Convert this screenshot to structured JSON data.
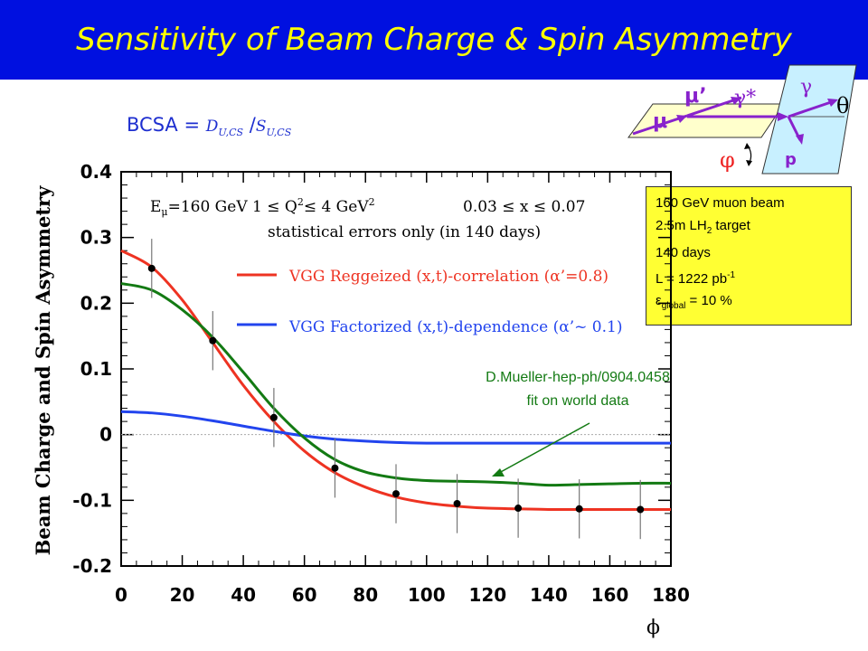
{
  "slide": {
    "title": "Sensitivity of Beam Charge & Spin Asymmetry",
    "banner_color": "#0010e0",
    "title_color": "#ffff00"
  },
  "formula": {
    "prefix": "BCSA = ",
    "d_main": "D",
    "d_sub": "U,CS",
    "sep": " /",
    "s_main": "S",
    "s_sub": "U,CS"
  },
  "kinematics": {
    "gamma": "γ",
    "gamma_star": "γ*",
    "mu_prime": "μ’",
    "mu": "μ",
    "theta": "θ",
    "phi": "φ",
    "proton": "p"
  },
  "info_box": {
    "line1": "160 GeV muon beam",
    "line2_pre": "2.5m LH",
    "line2_sub": "2",
    "line2_post": " target",
    "line3": "140 days",
    "line4_pre": "L = 1222 pb",
    "line4_sup": "-1",
    "line5_pre": "ε",
    "line5_sub": "global",
    "line5_post": " = 10 %",
    "background": "#ffff33"
  },
  "fit_note": {
    "line1": "D.Mueller-hep-ph/0904.0458",
    "line2": "fit on world data",
    "color": "#137a13"
  },
  "chart_data": {
    "type": "line",
    "xlabel": "ϕ",
    "ylabel": "Beam Charge and Spin Asymmetry",
    "xlim": [
      0,
      180
    ],
    "ylim": [
      -0.2,
      0.4
    ],
    "x_ticks": [
      "0",
      "20",
      "40",
      "60",
      "80",
      "100",
      "120",
      "140",
      "160",
      "180"
    ],
    "y_ticks": [
      "-0.2",
      "-0.1",
      "0",
      "0.1",
      "0.2",
      "0.3",
      "0.4"
    ],
    "zero_line": true,
    "annotations": {
      "kin_e": "E",
      "kin_e_sub": "μ",
      "kin_rest": "=160 GeV    1 ≤  Q",
      "kin_sup": "2",
      "kin_tail": "≤  4 GeV",
      "kin_sup2": "2",
      "kin_x": "0.03 ≤  x  ≤  0.07",
      "stat": "statistical errors only (in 140 days)"
    },
    "legend": [
      {
        "label": "VGG Reggeized (x,t)-correlation (α’=0.8)",
        "color": "#ee3322"
      },
      {
        "label": "VGG Factorized (x,t)-dependence (α’~ 0.1)",
        "color": "#2244ee"
      }
    ],
    "series": [
      {
        "name": "VGG Reggeized (x,t)-correlation (α’=0.8)",
        "color": "#ee3322",
        "x": [
          0,
          10,
          20,
          30,
          40,
          50,
          60,
          70,
          80,
          90,
          100,
          110,
          120,
          130,
          140,
          150,
          160,
          170,
          180
        ],
        "y": [
          0.28,
          0.255,
          0.205,
          0.14,
          0.075,
          0.02,
          -0.025,
          -0.058,
          -0.08,
          -0.095,
          -0.104,
          -0.109,
          -0.112,
          -0.113,
          -0.114,
          -0.114,
          -0.114,
          -0.114,
          -0.114
        ]
      },
      {
        "name": "VGG Factorized (x,t)-dependence (α’~ 0.1)",
        "color": "#2244ee",
        "x": [
          0,
          10,
          20,
          30,
          40,
          50,
          60,
          70,
          80,
          90,
          100,
          110,
          120,
          130,
          140,
          150,
          160,
          170,
          180
        ],
        "y": [
          0.035,
          0.033,
          0.028,
          0.021,
          0.013,
          0.005,
          -0.002,
          -0.007,
          -0.01,
          -0.012,
          -0.013,
          -0.013,
          -0.013,
          -0.013,
          -0.013,
          -0.013,
          -0.013,
          -0.013,
          -0.013
        ]
      },
      {
        "color": "#137a13",
        "x": [
          0,
          10,
          20,
          30,
          40,
          50,
          60,
          70,
          80,
          90,
          100,
          110,
          120,
          130,
          140,
          150,
          160,
          170,
          180
        ],
        "y": [
          0.23,
          0.22,
          0.19,
          0.148,
          0.095,
          0.04,
          -0.005,
          -0.038,
          -0.057,
          -0.066,
          -0.07,
          -0.071,
          -0.072,
          -0.074,
          -0.077,
          -0.076,
          -0.075,
          -0.074,
          -0.074
        ]
      }
    ],
    "points": {
      "x": [
        10,
        30,
        50,
        70,
        90,
        110,
        130,
        150,
        170
      ],
      "y": [
        0.253,
        0.143,
        0.026,
        -0.051,
        -0.09,
        -0.105,
        -0.112,
        -0.113,
        -0.114
      ],
      "err": [
        0.045,
        0.045,
        0.045,
        0.045,
        0.045,
        0.045,
        0.045,
        0.045,
        0.045
      ]
    }
  }
}
